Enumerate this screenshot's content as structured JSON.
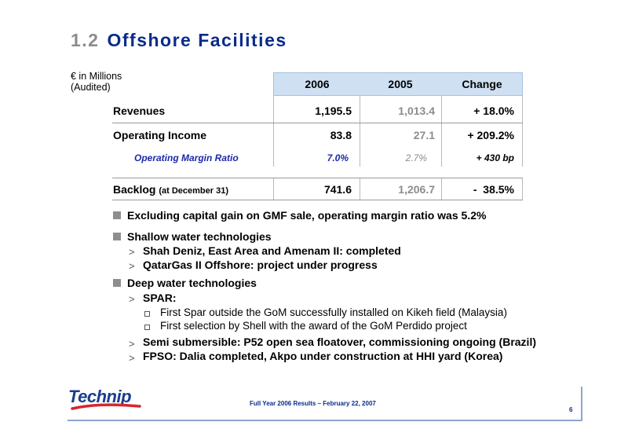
{
  "title": {
    "number": "1.2",
    "text": "Offshore Facilities"
  },
  "units": {
    "line1": "€ in Millions",
    "line2": "(Audited)"
  },
  "table": {
    "headers": [
      "2006",
      "2005",
      "Change"
    ],
    "rows": [
      {
        "label": "Revenues",
        "v2006": "1,195.5",
        "v2005": "1,013.4",
        "change": "+ 18.0%"
      },
      {
        "label": "Operating Income",
        "v2006": "83.8",
        "v2005": "27.1",
        "change": "+ 209.2%"
      },
      {
        "label": "Operating Margin Ratio",
        "v2006": "7.0%",
        "v2005": "2.7%",
        "change": "+ 430 bp"
      },
      {
        "label": "Backlog",
        "label_note": "(at December 31)",
        "v2006": "741.6",
        "v2005": "1,206.7",
        "change": "-  38.5%"
      }
    ]
  },
  "bullets": {
    "b1": "Excluding capital gain on GMF sale, operating margin ratio was 5.2%",
    "b2": "Shallow water technologies",
    "b2_1": "Shah Deniz, East Area and Amenam II: completed",
    "b2_2": "QatarGas II Offshore: project under progress",
    "b3": "Deep water technologies",
    "b3_1": "SPAR:",
    "b3_1_1": "First Spar outside the GoM successfully installed on Kikeh field (Malaysia)",
    "b3_1_2": "First selection by Shell with the award of the GoM Perdido project",
    "b3_2": "Semi submersible: P52 open sea floatover, commissioning ongoing (Brazil)",
    "b3_3": "FPSO: Dalia completed, Akpo under construction at HHI yard (Korea)",
    "marker": ">"
  },
  "footer": {
    "text": "Full Year 2006 Results – February 22, 2007",
    "page": "6",
    "logo": "Technip"
  },
  "colors": {
    "title_blue": "#0a2b8c",
    "header_bg": "#cfe0f3",
    "italic_blue": "#1b2aa8",
    "logo_blue": "#1a3d8f",
    "logo_red": "#d8262e"
  }
}
